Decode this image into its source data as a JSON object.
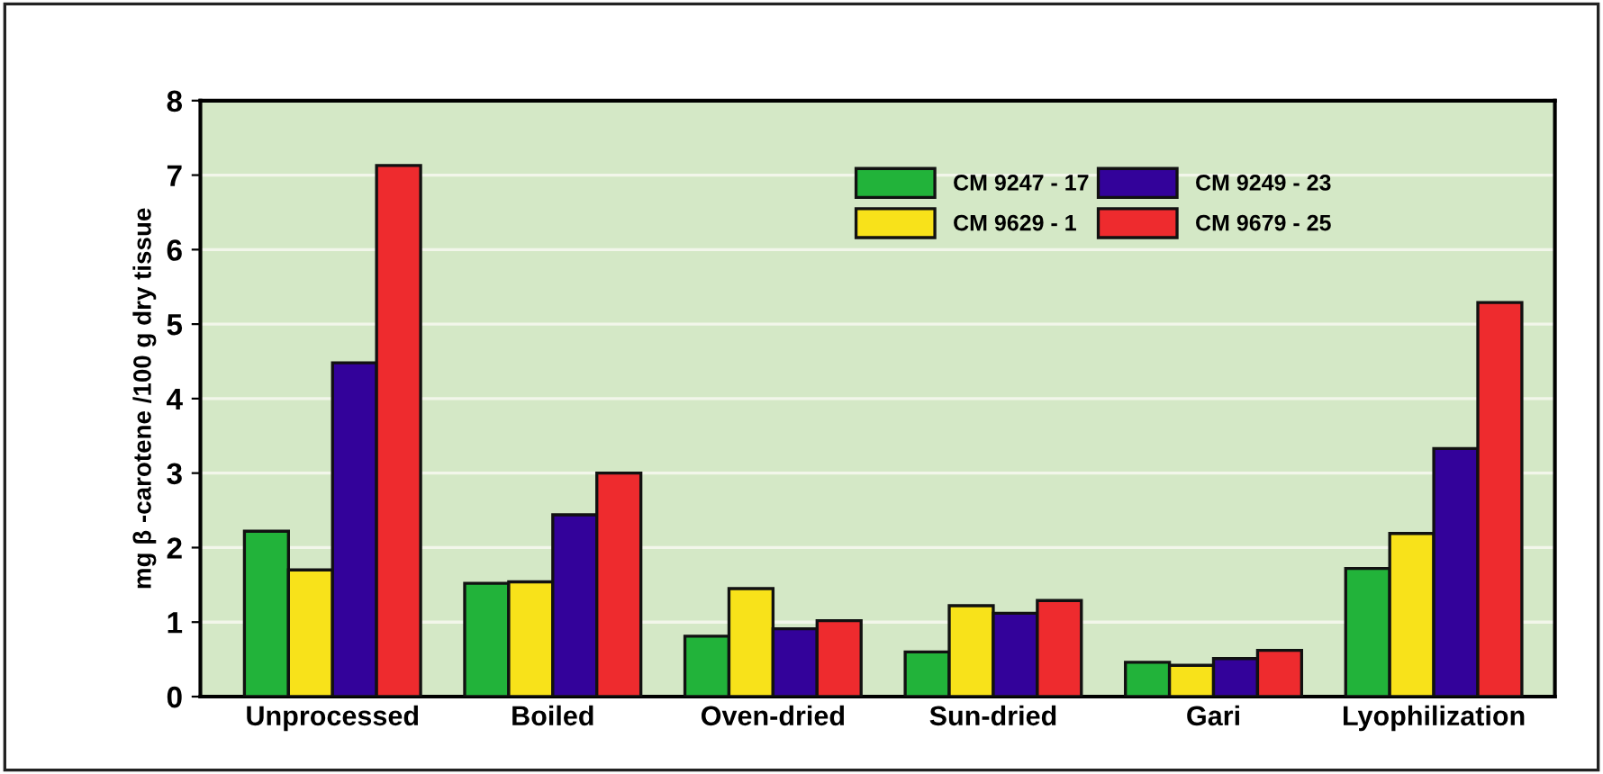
{
  "chart_data": {
    "type": "bar",
    "ylabel": "mg β -carotene /100 g dry tissue",
    "categories": [
      "Unprocessed",
      "Boiled",
      "Oven-dried",
      "Sun-dried",
      "Gari",
      "Lyophilization"
    ],
    "series": [
      {
        "name": "CM 9247 - 17",
        "color": "#22b33a",
        "values": [
          2.22,
          1.52,
          0.81,
          0.6,
          0.46,
          1.72
        ]
      },
      {
        "name": "CM 9629 - 1",
        "color": "#f8e21a",
        "values": [
          1.7,
          1.54,
          1.45,
          1.22,
          0.42,
          2.19
        ]
      },
      {
        "name": "CM 9249 - 23",
        "color": "#33029a",
        "values": [
          4.48,
          2.44,
          0.91,
          1.12,
          0.51,
          3.33
        ]
      },
      {
        "name": "CM 9679 - 25",
        "color": "#ee2b2e",
        "values": [
          7.13,
          3.0,
          1.02,
          1.29,
          0.62,
          5.29
        ]
      }
    ],
    "ylim": [
      0,
      8
    ],
    "yticks": [
      0,
      1,
      2,
      3,
      4,
      5,
      6,
      7,
      8
    ],
    "grid": "y",
    "legend": "top right"
  }
}
